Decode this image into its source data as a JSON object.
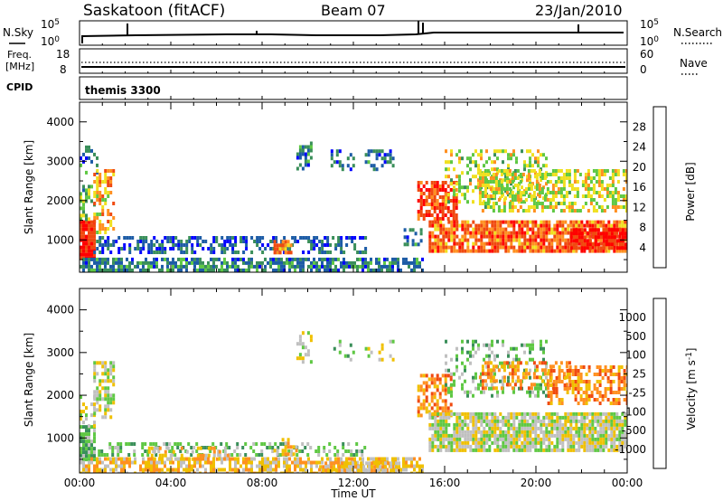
{
  "header": {
    "station": "Saskatoon (fitACF)",
    "beam": "Beam 07",
    "date": "23/Jan/2010"
  },
  "status_panels": {
    "nsky_label": "N.Sky",
    "nsearch_label": "N.Search",
    "nsky_ticks": [
      "10^5",
      "10^0"
    ],
    "nsearch_ticks": [
      "10^5",
      "10^0"
    ],
    "freq_label": "Freq.",
    "freq_unit": "[MHz]",
    "freq_ticks": [
      "18",
      "8"
    ],
    "nave_label": "Nave",
    "nave_ticks": [
      "60",
      "0"
    ],
    "cpid_label": "CPID",
    "cpid_value": "themis 3300"
  },
  "colors": {
    "power_scale": [
      "#0000ff",
      "#1d5ca6",
      "#3a8f5a",
      "#5fc844",
      "#f0e020",
      "#ff9020",
      "#f04a10",
      "#ff0000"
    ],
    "velocity_scale": [
      "#0000ff",
      "#1d5ca6",
      "#3a8f5a",
      "#5fc844",
      "#c0c0c0",
      "#f0c000",
      "#ff9020",
      "#f04a10",
      "#ff0000"
    ],
    "ground_scatter": "#c0c0c0"
  },
  "chart_data": [
    {
      "type": "heatmap",
      "title": "",
      "xlabel": "Time UT",
      "ylabel": "Slant Range [km]",
      "xlim_hours": [
        0,
        24
      ],
      "ylim": [
        180,
        4500
      ],
      "x_ticks": [
        "00:00",
        "04:00",
        "08:00",
        "12:00",
        "16:00",
        "20:00",
        "00:00"
      ],
      "y_ticks": [
        1000,
        2000,
        3000,
        4000
      ],
      "colorbar": {
        "label": "Power [dB]",
        "ticks": [
          4,
          8,
          12,
          16,
          20,
          24,
          28
        ],
        "range": [
          0,
          30
        ]
      },
      "regions": [
        {
          "t": [
            0.0,
            0.6
          ],
          "r": [
            500,
            1500
          ],
          "val": 27,
          "dens": 0.95
        },
        {
          "t": [
            0.0,
            0.7
          ],
          "r": [
            1500,
            2400
          ],
          "val": 12,
          "dens": 0.45
        },
        {
          "t": [
            0.0,
            0.8
          ],
          "r": [
            2700,
            3400
          ],
          "val": 7,
          "dens": 0.3
        },
        {
          "t": [
            0.6,
            1.5
          ],
          "r": [
            1200,
            2800
          ],
          "val": 19,
          "dens": 0.55
        },
        {
          "t": [
            0.6,
            12.5
          ],
          "r": [
            700,
            1100
          ],
          "val": 6,
          "dens": 0.5
        },
        {
          "t": [
            0.0,
            15.0
          ],
          "r": [
            200,
            550
          ],
          "val": 8,
          "dens": 0.7
        },
        {
          "t": [
            8.5,
            9.3
          ],
          "r": [
            700,
            1000
          ],
          "val": 22,
          "dens": 0.75
        },
        {
          "t": [
            9.5,
            10.2
          ],
          "r": [
            2800,
            3500
          ],
          "val": 8,
          "dens": 0.45
        },
        {
          "t": [
            11.0,
            12.0
          ],
          "r": [
            2800,
            3300
          ],
          "val": 7,
          "dens": 0.4
        },
        {
          "t": [
            12.5,
            13.8
          ],
          "r": [
            2800,
            3300
          ],
          "val": 7,
          "dens": 0.4
        },
        {
          "t": [
            14.2,
            15.0
          ],
          "r": [
            900,
            1300
          ],
          "val": 7,
          "dens": 0.5
        },
        {
          "t": [
            14.8,
            16.5
          ],
          "r": [
            1500,
            2500
          ],
          "val": 25,
          "dens": 0.7
        },
        {
          "t": [
            15.3,
            24.0
          ],
          "r": [
            700,
            1500
          ],
          "val": 23,
          "dens": 0.85
        },
        {
          "t": [
            16.0,
            20.5
          ],
          "r": [
            2000,
            3300
          ],
          "val": 15,
          "dens": 0.35
        },
        {
          "t": [
            17.5,
            24.0
          ],
          "r": [
            1700,
            2800
          ],
          "val": 16,
          "dens": 0.55
        },
        {
          "t": [
            21.5,
            24.0
          ],
          "r": [
            800,
            1300
          ],
          "val": 28,
          "dens": 0.8
        }
      ]
    },
    {
      "type": "heatmap",
      "title": "",
      "xlabel": "Time UT",
      "ylabel": "Slant Range [km]",
      "xlim_hours": [
        0,
        24
      ],
      "ylim": [
        180,
        4500
      ],
      "x_ticks": [
        "00:00",
        "04:00",
        "08:00",
        "12:00",
        "16:00",
        "20:00",
        "00:00"
      ],
      "y_ticks": [
        1000,
        2000,
        3000,
        4000
      ],
      "colorbar": {
        "label": "Velocity [m s^-1]",
        "ticks": [
          "1000",
          "500",
          "100",
          "25",
          "-25",
          "-100",
          "-500",
          "-1000"
        ]
      },
      "regions": [
        {
          "t": [
            0.0,
            0.6
          ],
          "r": [
            500,
            1300
          ],
          "cls": 3,
          "dens": 0.9
        },
        {
          "t": [
            0.0,
            0.7
          ],
          "r": [
            1300,
            2000
          ],
          "cls": 4,
          "dens": 0.4
        },
        {
          "t": [
            0.6,
            1.5
          ],
          "r": [
            1500,
            2800
          ],
          "cls": 4,
          "dens": 0.6
        },
        {
          "t": [
            0.8,
            12.5
          ],
          "r": [
            600,
            900
          ],
          "cls": 3,
          "dens": 0.35
        },
        {
          "t": [
            3.0,
            6.5
          ],
          "r": [
            500,
            800
          ],
          "cls": 5,
          "dens": 0.35
        },
        {
          "t": [
            0.0,
            15.0
          ],
          "r": [
            200,
            550
          ],
          "cls": 5,
          "dens": 0.65
        },
        {
          "t": [
            10.5,
            14.0
          ],
          "r": [
            200,
            450
          ],
          "cls": 5,
          "dens": 0.7
        },
        {
          "t": [
            8.5,
            9.5
          ],
          "r": [
            600,
            1000
          ],
          "cls": 5,
          "dens": 0.5
        },
        {
          "t": [
            9.5,
            10.2
          ],
          "r": [
            2800,
            3500
          ],
          "cls": 4,
          "dens": 0.4
        },
        {
          "t": [
            11.0,
            12.0
          ],
          "r": [
            2800,
            3300
          ],
          "cls": 3,
          "dens": 0.3
        },
        {
          "t": [
            12.5,
            13.8
          ],
          "r": [
            2800,
            3300
          ],
          "cls": 4,
          "dens": 0.35
        },
        {
          "t": [
            14.8,
            16.3
          ],
          "r": [
            1500,
            2500
          ],
          "cls": 6,
          "dens": 0.6
        },
        {
          "t": [
            15.3,
            24.0
          ],
          "r": [
            700,
            1600
          ],
          "cls": 4,
          "dens": 0.85
        },
        {
          "t": [
            16.0,
            20.5
          ],
          "r": [
            2000,
            3300
          ],
          "cls": 3,
          "dens": 0.3
        },
        {
          "t": [
            17.5,
            21.5
          ],
          "r": [
            2200,
            2800
          ],
          "cls": 6,
          "dens": 0.45
        },
        {
          "t": [
            20.5,
            24.0
          ],
          "r": [
            1800,
            2700
          ],
          "cls": 6,
          "dens": 0.5
        }
      ]
    }
  ]
}
